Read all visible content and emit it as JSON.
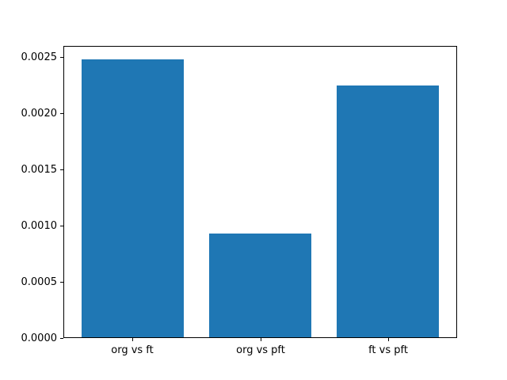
{
  "chart_data": {
    "type": "bar",
    "categories": [
      "org vs ft",
      "org vs pft",
      "ft vs pft"
    ],
    "values": [
      0.00248,
      0.00093,
      0.00225
    ],
    "title": "",
    "xlabel": "",
    "ylabel": "",
    "ylim": [
      0,
      0.0026
    ],
    "yticks": [
      0.0,
      0.0005,
      0.001,
      0.0015,
      0.002,
      0.0025
    ],
    "ytick_labels": [
      "0.0000",
      "0.0005",
      "0.0010",
      "0.0015",
      "0.0020",
      "0.0025"
    ],
    "bar_color": "#1f77b4",
    "axis_color": "#000000",
    "background_color": "#ffffff",
    "grid": false,
    "legend": null,
    "bar_relative_width": 0.8,
    "xlim": [
      -0.54,
      2.54
    ]
  }
}
